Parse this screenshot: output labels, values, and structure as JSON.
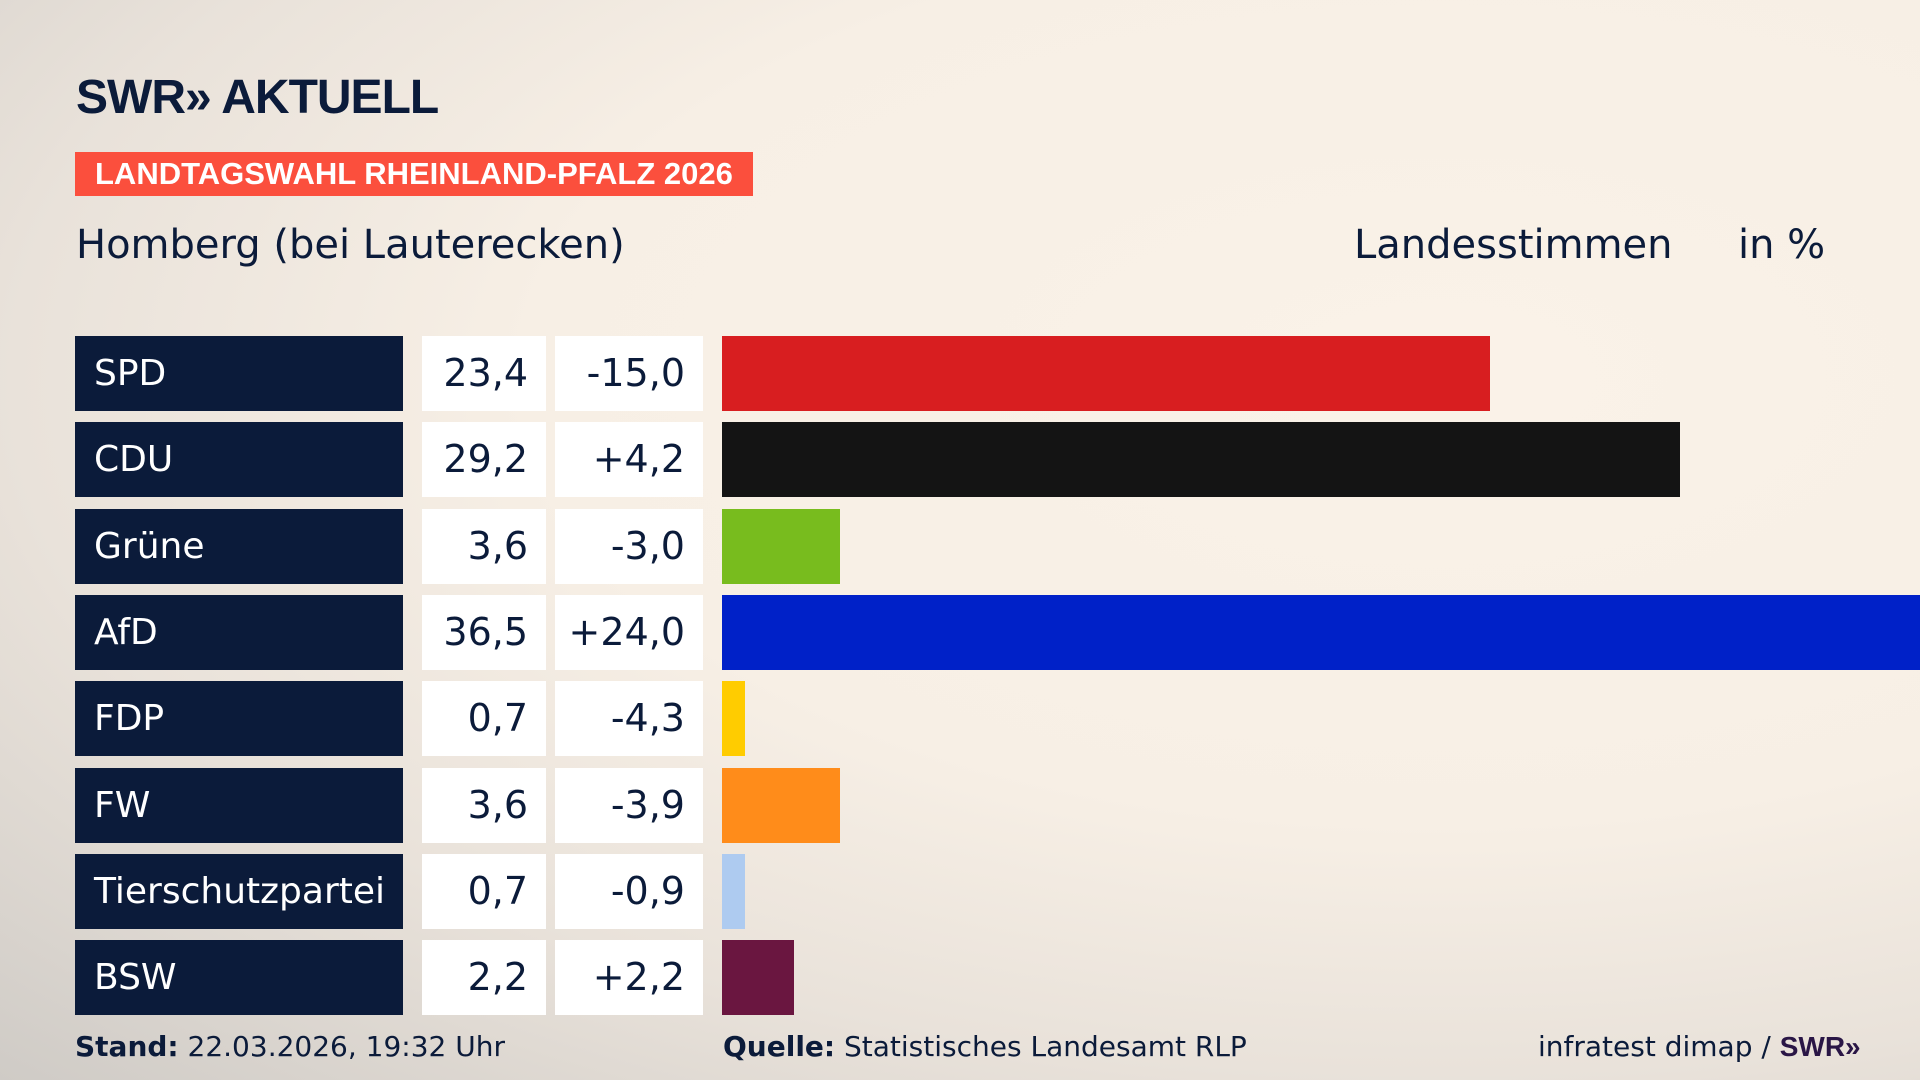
{
  "brand": {
    "logo": "SWR» AKTUELL"
  },
  "banner": "LANDTAGSWAHL RHEINLAND-PFALZ 2026",
  "place": "Homberg (bei Lauterecken)",
  "header": {
    "vote_type": "Landesstimmen",
    "unit": "in %"
  },
  "chart_data": {
    "type": "bar",
    "orientation": "horizontal",
    "categories": [
      "SPD",
      "CDU",
      "Grüne",
      "AfD",
      "FDP",
      "FW",
      "Tierschutzpartei",
      "BSW"
    ],
    "values": [
      23.4,
      29.2,
      3.6,
      36.5,
      0.7,
      3.6,
      0.7,
      2.2
    ],
    "value_labels": [
      "23,4",
      "29,2",
      "3,6",
      "36,5",
      "0,7",
      "3,6",
      "0,7",
      "2,2"
    ],
    "changes": [
      -15.0,
      4.2,
      -3.0,
      24.0,
      -4.3,
      -3.9,
      -0.9,
      2.2
    ],
    "change_labels": [
      "-15,0",
      "+4,2",
      "-3,0",
      "+24,0",
      "-4,3",
      "-3,9",
      "-0,9",
      "+2,2"
    ],
    "colors": [
      "#d81e20",
      "#141414",
      "#78bc1e",
      "#0021c8",
      "#ffcc00",
      "#ff8c1a",
      "#aecbf0",
      "#6a1640"
    ],
    "xlim": [
      0,
      36.5
    ],
    "grid": false
  },
  "footer": {
    "stand_label": "Stand:",
    "stand_value": "22.03.2026, 19:32 Uhr",
    "source_label": "Quelle:",
    "source_value": "Statistisches Landesamt RLP",
    "credit": "infratest dimap / ",
    "credit_brand": "SWR»"
  }
}
